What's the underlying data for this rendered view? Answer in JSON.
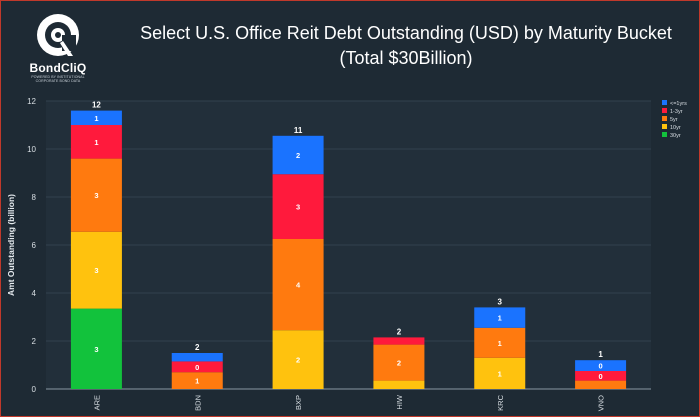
{
  "logo": {
    "brand": "BondCliQ",
    "tagline": "POWERED BY INSTITUTIONAL CORPORATE BOND DATA"
  },
  "title": {
    "line1": "Select U.S. Office Reit Debt Outstanding (USD) by Maturity Bucket",
    "line2": "(Total $30Billion)"
  },
  "chart_data": {
    "type": "bar",
    "stacked": true,
    "categories": [
      "ARE",
      "BDN",
      "BXP",
      "HIW",
      "KRC",
      "VNO"
    ],
    "series": [
      {
        "name": "30yr",
        "color": "#12c23c",
        "values": [
          3.35,
          0,
          0,
          0,
          0,
          0
        ],
        "labels": [
          "3",
          "",
          "",
          "",
          "",
          ""
        ]
      },
      {
        "name": "10yr",
        "color": "#ffc20e",
        "values": [
          3.2,
          0,
          2.45,
          0.35,
          1.3,
          0
        ],
        "labels": [
          "3",
          "",
          "2",
          "",
          "1",
          ""
        ]
      },
      {
        "name": "5yr",
        "color": "#ff7a0f",
        "values": [
          3.05,
          0.7,
          3.8,
          1.5,
          1.25,
          0.35
        ],
        "labels": [
          "3",
          "1",
          "4",
          "2",
          "1",
          ""
        ]
      },
      {
        "name": "1-3yr",
        "color": "#ff1a3c",
        "values": [
          1.4,
          0.45,
          2.7,
          0.3,
          0,
          0.4
        ],
        "labels": [
          "1",
          "0",
          "3",
          "",
          "",
          "0"
        ]
      },
      {
        "name": "<=1yrs",
        "color": "#1a73ff",
        "values": [
          0.6,
          0.35,
          1.6,
          0,
          0.85,
          0.45
        ],
        "labels": [
          "1",
          "",
          "2",
          "",
          "1",
          "0"
        ]
      }
    ],
    "totals": [
      "12",
      "2",
      "11",
      "2",
      "3",
      "1"
    ],
    "legend_order": [
      "<=1yrs",
      "1-3yr",
      "5yr",
      "10yr",
      "30yr"
    ],
    "legend_position": "top-right",
    "ylabel": "Amt Outstanding (billion)",
    "xlabel": "",
    "ylim": [
      0,
      12
    ],
    "yticks": [
      0,
      2,
      4,
      6,
      8,
      10,
      12
    ],
    "grid": true
  }
}
